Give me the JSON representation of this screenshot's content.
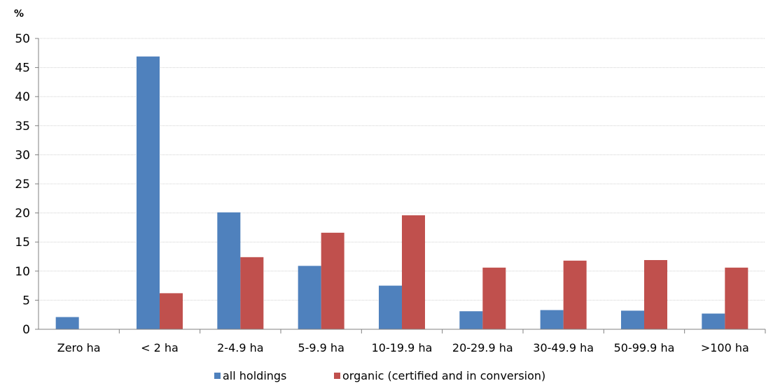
{
  "chart_data": {
    "type": "bar",
    "y_unit": "%",
    "ylim": [
      0,
      50
    ],
    "yticks": [
      0,
      5,
      10,
      15,
      20,
      25,
      30,
      35,
      40,
      45,
      50
    ],
    "categories": [
      "Zero ha",
      "< 2 ha",
      "2-4.9 ha",
      "5-9.9 ha",
      "10-19.9 ha",
      "20-29.9 ha",
      "30-49.9 ha",
      "50-99.9 ha",
      ">100 ha"
    ],
    "series": [
      {
        "name": "all holdings",
        "color": "#4F81BD",
        "values": [
          2.1,
          46.9,
          20.1,
          10.9,
          7.5,
          3.1,
          3.3,
          3.2,
          2.7
        ]
      },
      {
        "name": "organic (certified and in conversion)",
        "color": "#C0504D",
        "values": [
          0,
          6.2,
          12.4,
          16.6,
          19.6,
          10.6,
          11.8,
          11.9,
          10.6
        ]
      }
    ],
    "grid": true,
    "legend_position": "bottom"
  }
}
